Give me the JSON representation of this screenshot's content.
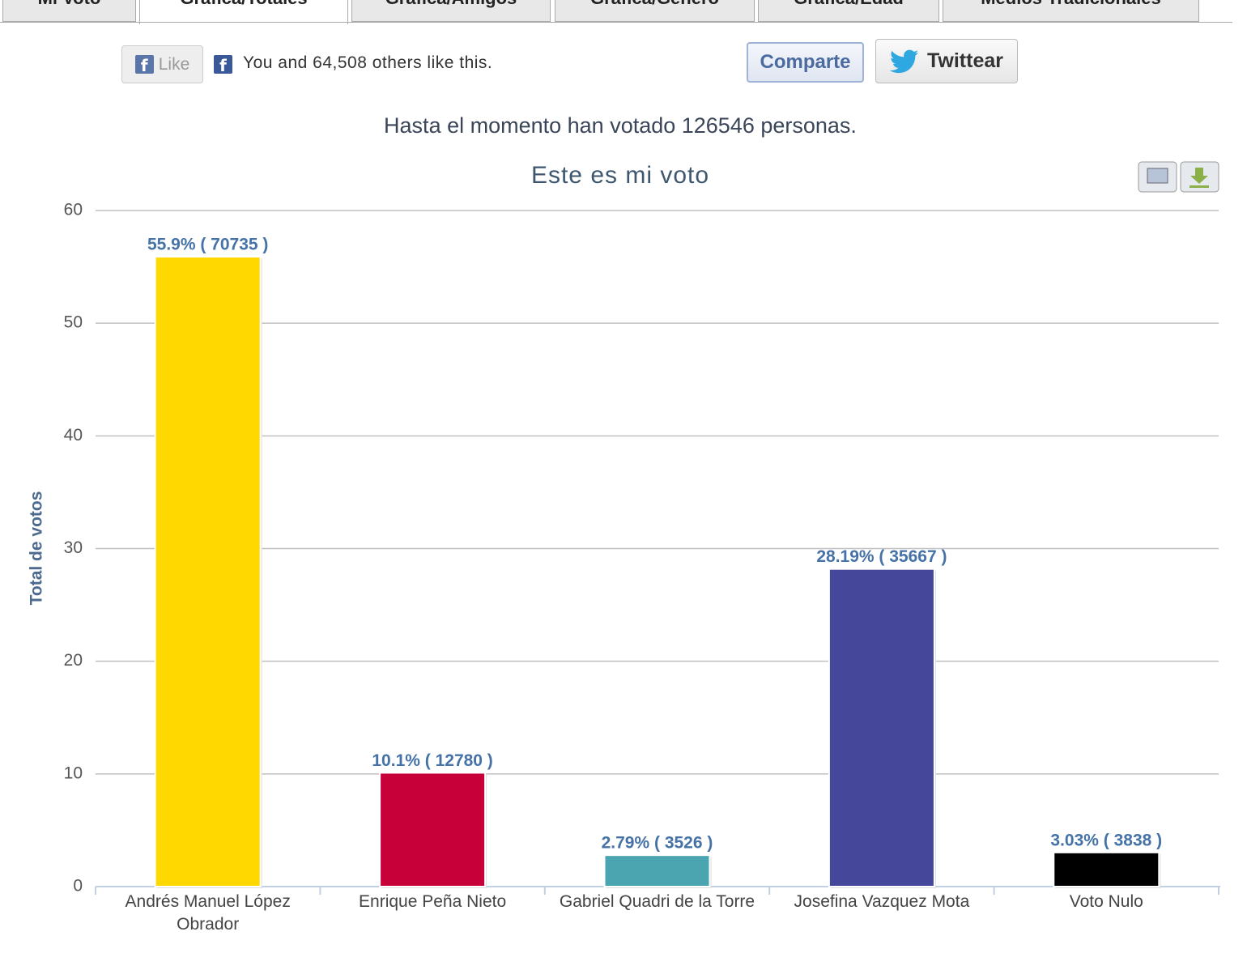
{
  "tabs": [
    "Mi Voto",
    "Gráfica/Totales",
    "Gráfica/Amigos",
    "Gráfica/Género",
    "Gráfica/Edad",
    "Medios Tradicionales"
  ],
  "social": {
    "like": "Like",
    "like_text": "You and 64,508 others like this.",
    "share": "Comparte",
    "tweet": "Twittear"
  },
  "notice": "Hasta el momento han votado 126546 personas.",
  "chart_data": {
    "type": "bar",
    "title": "Este es mi voto",
    "y_label": "Total de votos",
    "categories": [
      "Andrés Manuel López Obrador",
      "Enrique Peña Nieto",
      "Gabriel Quadri de la Torre",
      "Josefina Vazquez Mota",
      "Voto Nulo"
    ],
    "values": [
      55.9,
      10.1,
      2.79,
      28.19,
      3.03
    ],
    "value_labels": [
      "55.9% ( 70735 )",
      "10.1% ( 12780 )",
      "2.79% ( 3526 )",
      "28.19% ( 35667 )",
      "3.03% ( 3838 )"
    ],
    "colors": [
      "#ffd800",
      "#c8003a",
      "#4aa5b0",
      "#45479b",
      "#000000"
    ],
    "ylim": [
      0,
      60
    ],
    "yticks": [
      0,
      10,
      20,
      30,
      40,
      50,
      60
    ],
    "grid": true
  }
}
